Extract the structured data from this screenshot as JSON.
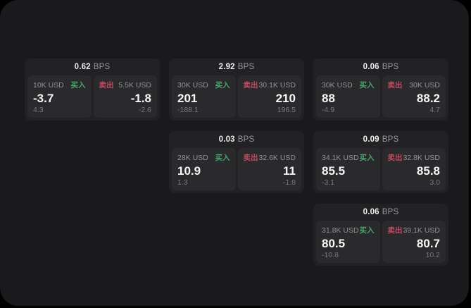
{
  "labels": {
    "bps_unit": "BPS",
    "buy": "买入",
    "sell": "卖出"
  },
  "colors": {
    "page_bg": "#000000",
    "panel_bg": "#1a1a1c",
    "card_bg": "#222224",
    "tile_bg": "#2a2a2c",
    "buy_green": "#46a56d",
    "sell_red": "#c14a60"
  },
  "cards": [
    {
      "bps": "0.62",
      "buy": {
        "amount": "10K USD",
        "value": "-3.7",
        "sub": "4.3"
      },
      "sell": {
        "amount": "5.5K USD",
        "value": "-1.8",
        "sub": "-2.6"
      }
    },
    {
      "bps": "2.92",
      "buy": {
        "amount": "30K USD",
        "value": "201",
        "sub": "-188.1"
      },
      "sell": {
        "amount": "30.1K USD",
        "value": "210",
        "sub": "196.5"
      }
    },
    {
      "bps": "0.06",
      "buy": {
        "amount": "30K USD",
        "value": "88",
        "sub": "-4.9"
      },
      "sell": {
        "amount": "30K USD",
        "value": "88.2",
        "sub": "4.7"
      }
    },
    {
      "bps": "0.03",
      "buy": {
        "amount": "28K USD",
        "value": "10.9",
        "sub": "1.3"
      },
      "sell": {
        "amount": "32.6K USD",
        "value": "11",
        "sub": "-1.8"
      }
    },
    {
      "bps": "0.09",
      "buy": {
        "amount": "34.1K USD",
        "value": "85.5",
        "sub": "-3.1"
      },
      "sell": {
        "amount": "32.8K USD",
        "value": "85.8",
        "sub": "3.0"
      }
    },
    {
      "bps": "0.06",
      "buy": {
        "amount": "31.8K USD",
        "value": "80.5",
        "sub": "-10.8"
      },
      "sell": {
        "amount": "39.1K USD",
        "value": "80.7",
        "sub": "10.2"
      }
    }
  ]
}
